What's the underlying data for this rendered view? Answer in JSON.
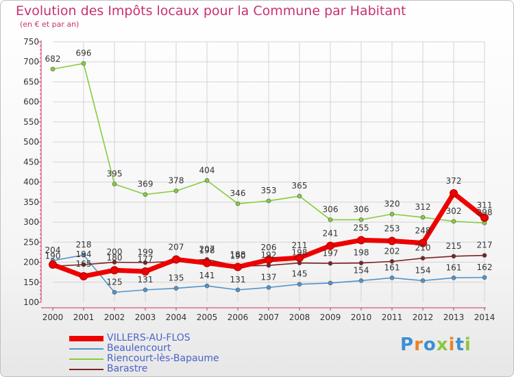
{
  "header": {
    "title": "Evolution des Impôts locaux pour la Commune par Habitant",
    "subtitle": "(en € et par an)"
  },
  "brand": {
    "logo_text": "Proxiti",
    "letter_colors": [
      "#3b8fd4",
      "#e8842a",
      "#3b8fd4",
      "#8cc63f",
      "#e8842a",
      "#3b8fd4",
      "#8cc63f"
    ]
  },
  "colors": {
    "title": "#c8306f",
    "axis": "#c8306f",
    "grid": "#d3d3d3",
    "legend_text": "#4a62c8"
  },
  "chart_data": {
    "type": "line",
    "title": "Evolution des Impôts locaux pour la Commune par Habitant",
    "subtitle": "(en € et par an)",
    "xlabel": "",
    "ylabel": "",
    "x": [
      2000,
      2001,
      2002,
      2003,
      2004,
      2005,
      2006,
      2007,
      2008,
      2009,
      2010,
      2011,
      2012,
      2013,
      2014
    ],
    "ylim": [
      100,
      750
    ],
    "yticks": [
      100,
      150,
      200,
      250,
      300,
      350,
      400,
      450,
      500,
      550,
      600,
      650,
      700,
      750
    ],
    "grid": true,
    "legend_position": "bottom-left",
    "series": [
      {
        "name": "VILLERS-AU-FLOS",
        "color": "#ee0000",
        "values": [
          194,
          165,
          180,
          177,
          207,
          198,
          188,
          206,
          211,
          241,
          255,
          253,
          248,
          372,
          311
        ]
      },
      {
        "name": "Beaulencourt",
        "color": "#4f94cd",
        "values": [
          204,
          218,
          125,
          131,
          135,
          141,
          131,
          137,
          145,
          148,
          154,
          161,
          154,
          161,
          162
        ]
      },
      {
        "name": "Riencourt-lès-Bapaume",
        "color": "#86cc3c",
        "values": [
          682,
          696,
          395,
          369,
          378,
          404,
          346,
          353,
          365,
          306,
          306,
          320,
          312,
          302,
          298
        ]
      },
      {
        "name": "Barastre",
        "color": "#7b2323",
        "values": [
          190,
          194,
          200,
          199,
          202,
          207,
          190,
          192,
          198,
          197,
          198,
          202,
          210,
          215,
          217
        ]
      }
    ],
    "data_labels": {
      "VILLERS-AU-FLOS": [
        "",
        "165",
        "180",
        "177",
        "207",
        "198",
        "188",
        "206",
        "211",
        "241",
        "255",
        "253",
        "248",
        "372",
        "311"
      ],
      "Beaulencourt": [
        "204",
        "218",
        "125",
        "131",
        "135",
        "141",
        "131",
        "137",
        "145",
        "",
        "154",
        "161",
        "154",
        "161",
        "162"
      ],
      "Riencourt-lès-Bapaume": [
        "682",
        "696",
        "395",
        "369",
        "378",
        "404",
        "346",
        "353",
        "365",
        "306",
        "306",
        "320",
        "312",
        "302",
        "298"
      ],
      "Barastre": [
        "190",
        "194",
        "200",
        "199",
        "",
        "207",
        "190",
        "192",
        "198",
        "197",
        "198",
        "202",
        "210",
        "215",
        "217"
      ]
    }
  }
}
